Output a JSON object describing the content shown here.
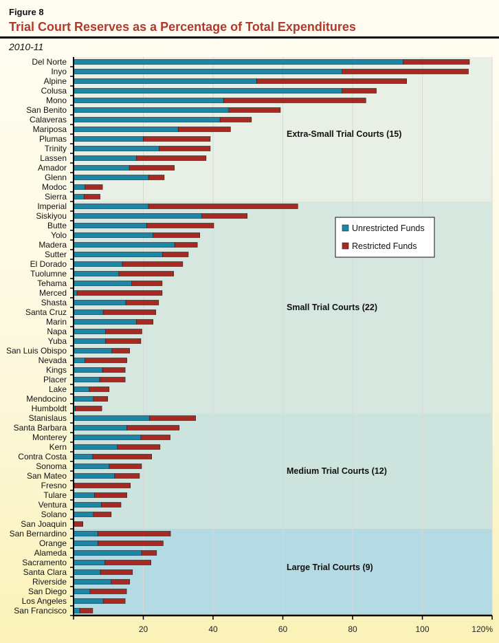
{
  "figure_label": "Figure 8",
  "title": "Trial Court Reserves as a Percentage of Total Expenditures",
  "subtitle": "2010-11",
  "colors": {
    "unrestricted": "#1b86a6",
    "restricted": "#a62a22",
    "band_extra_small": "#e8efe5",
    "band_small": "#d5e7df",
    "band_medium": "#cce3de",
    "band_large": "#b4dbe3"
  },
  "chart_data": {
    "type": "bar",
    "orientation": "horizontal",
    "stacked": true,
    "title": "Trial Court Reserves as a Percentage of Total Expenditures",
    "subtitle": "2010-11",
    "xlim": [
      0,
      120
    ],
    "x_ticks": [
      "20",
      "40",
      "60",
      "80",
      "100",
      "120%"
    ],
    "x_tick_values": [
      20,
      40,
      60,
      80,
      100,
      120
    ],
    "grid": true,
    "legend_position": "upper-right (inside)",
    "categories": [
      "Del Norte",
      "Inyo",
      "Alpine",
      "Colusa",
      "Mono",
      "San Benito",
      "Calaveras",
      "Mariposa",
      "Plumas",
      "Trinity",
      "Lassen",
      "Amador",
      "Glenn",
      "Modoc",
      "Sierra",
      "Imperial",
      "Siskiyou",
      "Butte",
      "Yolo",
      "Madera",
      "Sutter",
      "El Dorado",
      "Tuolumne",
      "Tehama",
      "Merced",
      "Shasta",
      "Santa Cruz",
      "Marin",
      "Napa",
      "Yuba",
      "San Luis Obispo",
      "Nevada",
      "Kings",
      "Placer",
      "Lake",
      "Mendocino",
      "Humboldt",
      "Stanislaus",
      "Santa Barbara",
      "Monterey",
      "Kern",
      "Contra Costa",
      "Sonoma",
      "San Mateo",
      "Fresno",
      "Tulare",
      "Ventura",
      "Solano",
      "San Joaquin",
      "San Bernardino",
      "Orange",
      "Alameda",
      "Sacramento",
      "Santa Clara",
      "Riverside",
      "San Diego",
      "Los Angeles",
      "San Francisco"
    ],
    "series": [
      {
        "name": "Unrestricted Funds",
        "values": [
          94.5,
          77,
          52.5,
          77,
          43,
          44.5,
          42,
          30,
          20,
          24.5,
          18,
          16,
          21.5,
          3.3,
          3,
          21.5,
          36.8,
          21,
          22.8,
          29,
          25.5,
          14,
          13,
          16.7,
          1,
          15,
          8.5,
          18,
          9.2,
          9.2,
          11,
          3.3,
          8.3,
          7.5,
          4.5,
          5.7,
          0.5,
          21.8,
          15.3,
          19.3,
          12.6,
          5.5,
          10.2,
          11.8,
          0.2,
          6,
          8,
          5.7,
          0.1,
          7,
          7,
          19.5,
          9,
          7.7,
          10.8,
          4.7,
          8.5,
          1.8
        ]
      },
      {
        "name": "Restricted Funds",
        "values": [
          19,
          36.2,
          43,
          9.8,
          40.8,
          14.8,
          9,
          15,
          19.2,
          14.7,
          20,
          12.9,
          4.5,
          5,
          4.6,
          42.8,
          13,
          19.2,
          13.4,
          6.5,
          7.4,
          17.3,
          15.7,
          8.7,
          24.4,
          9.4,
          15.1,
          4.8,
          10.4,
          10.1,
          5.1,
          12,
          6.5,
          7.3,
          5.7,
          4.1,
          7.6,
          13.2,
          15,
          8.4,
          12.2,
          16.9,
          9.3,
          7.1,
          16.1,
          9.3,
          5.6,
          5.1,
          2.6,
          20.8,
          18.7,
          4.3,
          13.2,
          9.2,
          5.3,
          10.5,
          6.3,
          3.7
        ]
      }
    ],
    "groups": [
      {
        "label": "Extra-Small Trial Courts (15)",
        "count": 15
      },
      {
        "label": "Small Trial Courts (22)",
        "count": 22
      },
      {
        "label": "Medium Trial Courts (12)",
        "count": 12
      },
      {
        "label": "Large Trial Courts (9)",
        "count": 9
      }
    ]
  }
}
